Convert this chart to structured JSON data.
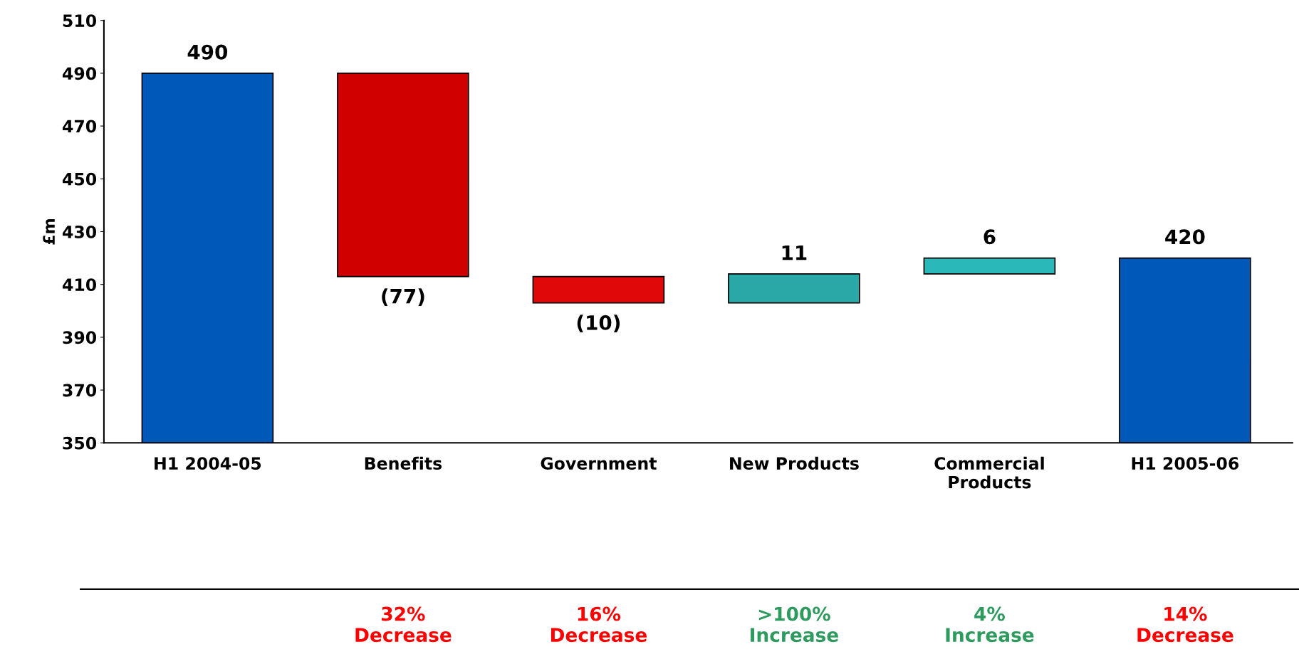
{
  "chart_data": {
    "type": "bar",
    "ylabel": "£m",
    "categories": [
      "H1 2004-05",
      "Benefits",
      "Government",
      "New Products",
      "Commercial\nProducts",
      "H1 2005-06"
    ],
    "values": [
      490,
      -77,
      -10,
      11,
      6,
      420
    ],
    "base": [
      null,
      490,
      413,
      403,
      414,
      null
    ],
    "colors": [
      "#0058b8",
      "#d00000",
      "#e00808",
      "#2aa8a8",
      "#2ab8b8",
      "#0058b8"
    ],
    "value_labels": [
      "490",
      "(77)",
      "(10)",
      "11",
      "6",
      "420"
    ],
    "ylim": [
      350,
      510
    ],
    "yticks": [
      350,
      370,
      390,
      410,
      430,
      450,
      470,
      490,
      510
    ],
    "grid": false,
    "legend": false,
    "annotations": [
      "32%\nDecrease",
      "16%\nDecrease",
      ">100%\nIncrease",
      "4%\nIncrease",
      "14%\nDecrease"
    ]
  }
}
